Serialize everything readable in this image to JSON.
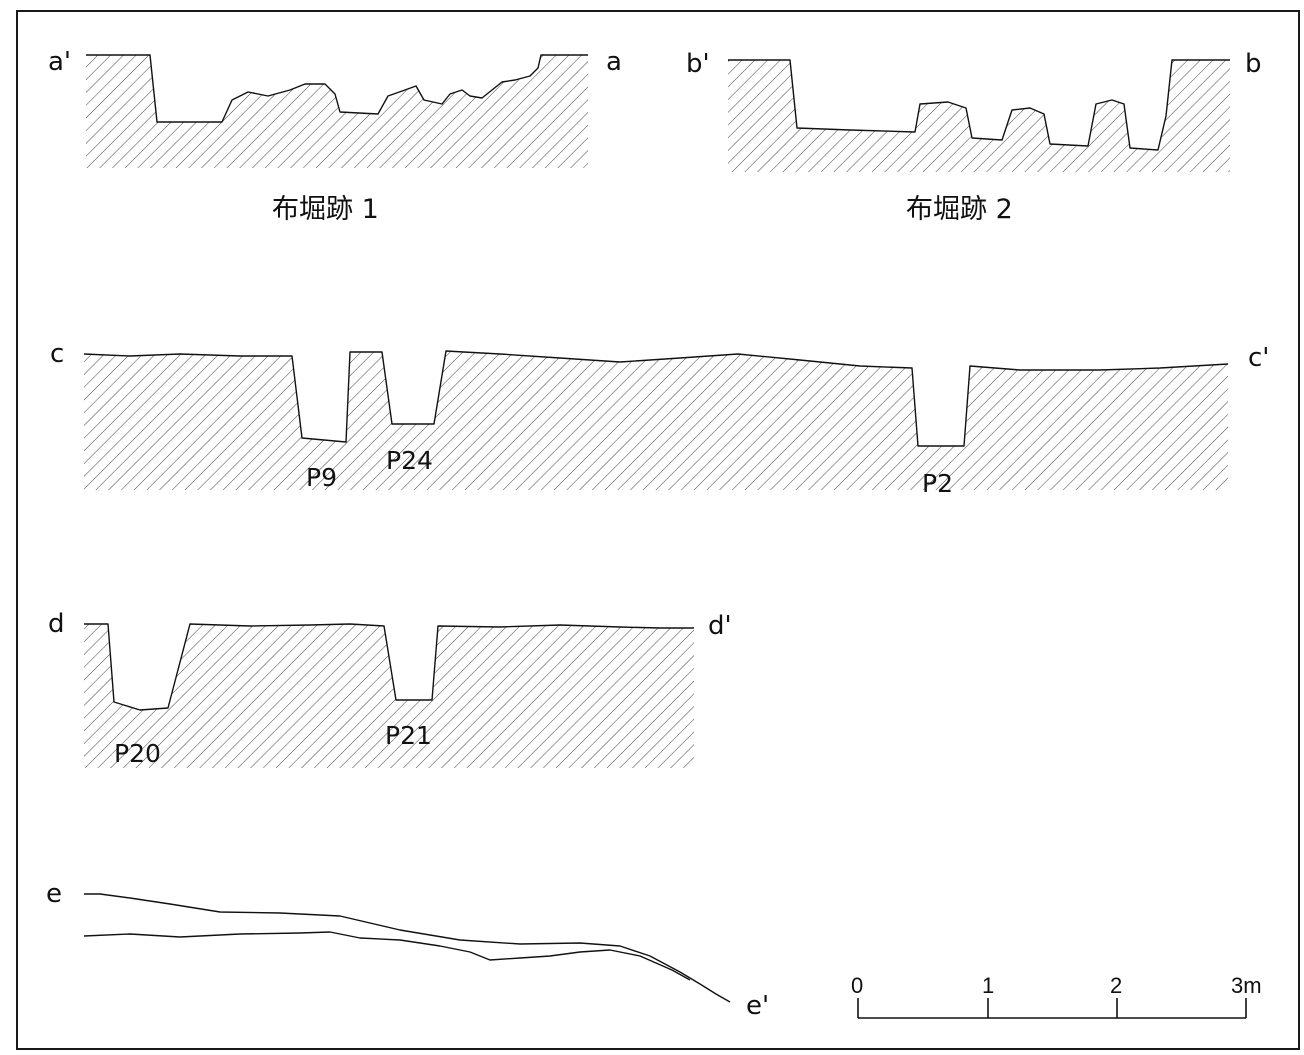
{
  "sections": {
    "a": {
      "left_label": "a'",
      "right_label": "a",
      "caption": "布堀跡 1"
    },
    "b": {
      "left_label": "b'",
      "right_label": "b",
      "caption": "布堀跡 2"
    },
    "c": {
      "left_label": "c",
      "right_label": "c'",
      "pits": [
        "P9",
        "P24",
        "P2"
      ]
    },
    "d": {
      "left_label": "d",
      "right_label": "d'",
      "pits": [
        "P20",
        "P21"
      ]
    },
    "e": {
      "left_label": "e",
      "right_label": "e'"
    }
  },
  "scale_bar": {
    "ticks": [
      "0",
      "1",
      "2",
      "3m"
    ]
  },
  "colors": {
    "line": "#111111",
    "hatch": "#444444",
    "frame": "#1a1a1a"
  }
}
